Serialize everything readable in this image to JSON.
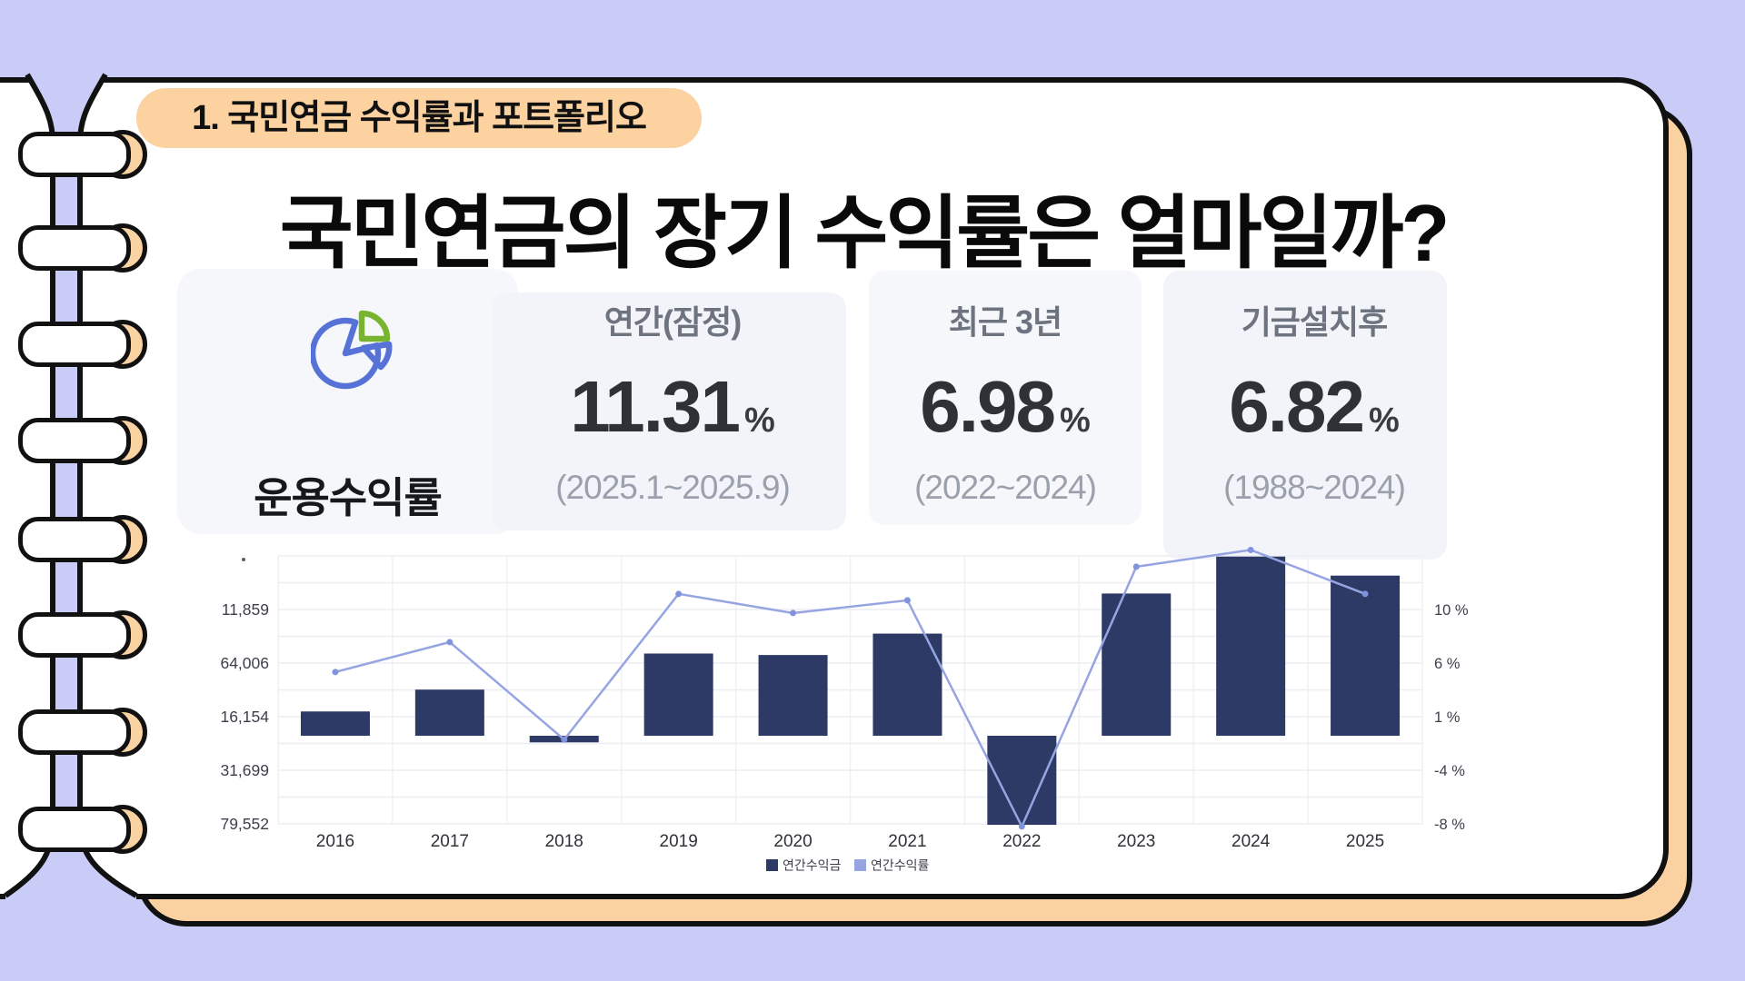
{
  "page": {
    "section_badge": "1. 국민연금 수익률과 포트폴리오",
    "title": "국민연금의 장기 수익률은 얼마일까?"
  },
  "stats": {
    "icon": "pie-chart-icon",
    "panel_label": "운용수익률",
    "cards": [
      {
        "title": "연간(잠정)",
        "value": "11.31",
        "unit": "%",
        "period": "(2025.1~2025.9)"
      },
      {
        "title": "최근 3년",
        "value": "6.98",
        "unit": "%",
        "period": "(2022~2024)"
      },
      {
        "title": "기금설치후",
        "value": "6.82",
        "unit": "%",
        "period": "(1988~2024)"
      }
    ]
  },
  "chart_data": {
    "type": "bar",
    "subtype": "bar-line-combo",
    "categories": [
      "2016",
      "2017",
      "2018",
      "2019",
      "2020",
      "2021",
      "2022",
      "2023",
      "2024",
      "2025"
    ],
    "series": [
      {
        "name": "연간수익금",
        "type": "bar",
        "axis": "left",
        "color": "#2e3a66",
        "values": [
          21700,
          41200,
          -5900,
          73400,
          72100,
          91200,
          -79552,
          127000,
          160000,
          143000
        ]
      },
      {
        "name": "연간수익률",
        "type": "line",
        "axis": "right",
        "unit": "%",
        "color": "#96a4e2",
        "marker_color": "#8093dd",
        "values": [
          4.75,
          7.26,
          -0.92,
          11.31,
          9.7,
          10.77,
          -8.22,
          13.59,
          15.0,
          11.31
        ]
      }
    ],
    "left_axis": {
      "tick_labels": [
        "11,859",
        "64,006",
        "16,154",
        "31,699",
        "79,552"
      ],
      "top_mark": "·"
    },
    "right_axis": {
      "tick_labels": [
        "10 %",
        "6 %",
        "1 %",
        "-4 %",
        "-8 %"
      ]
    },
    "legend": {
      "position": "bottom",
      "items": [
        "연간수익금",
        "연간수익률"
      ]
    },
    "grid": true
  },
  "colors": {
    "background": "#c9ccf6",
    "page": "#ffffff",
    "back_page": "#fad2a2",
    "badge": "#fbd2a0",
    "bar": "#2e3a66",
    "line": "#96a4e2",
    "icon_blue": "#5672d6",
    "icon_green": "#79b42e"
  }
}
